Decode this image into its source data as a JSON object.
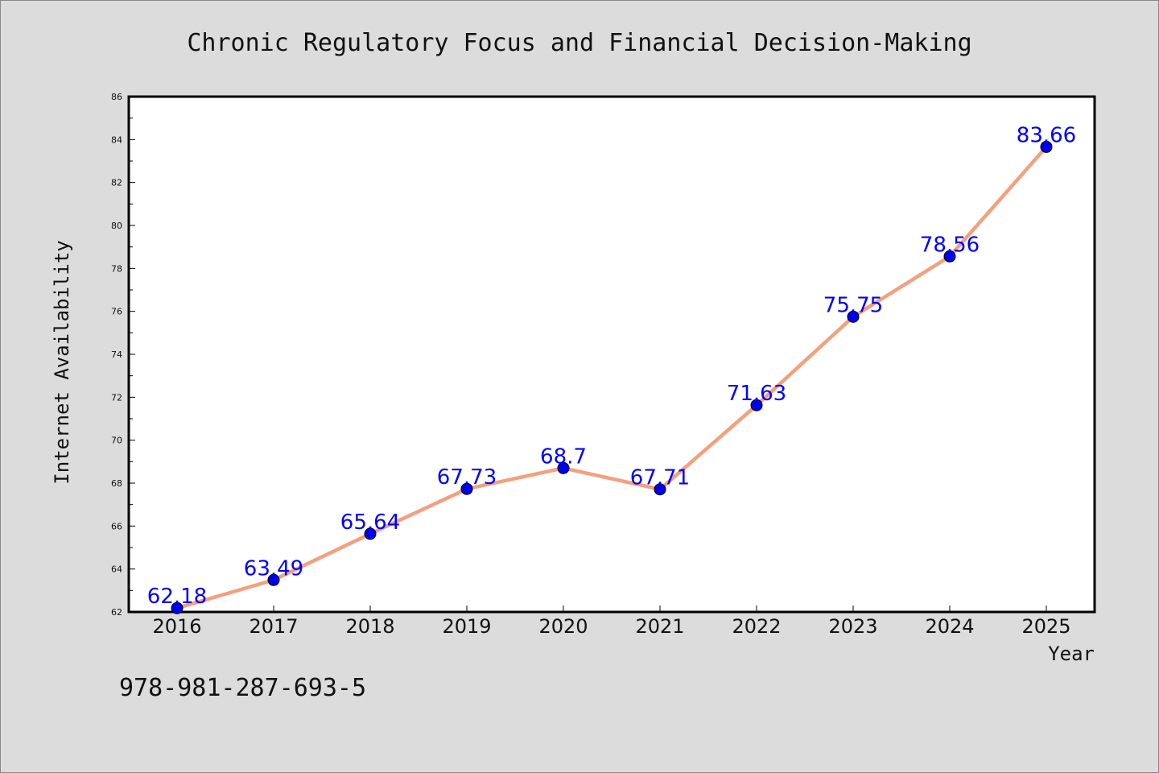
{
  "chart_data": {
    "type": "line",
    "title": "Chronic Regulatory Focus and Financial Decision-Making",
    "xlabel": "Year",
    "ylabel": "Internet Availability",
    "categories": [
      "2016",
      "2017",
      "2018",
      "2019",
      "2020",
      "2021",
      "2022",
      "2023",
      "2024",
      "2025"
    ],
    "values": [
      62.18,
      63.49,
      65.64,
      67.73,
      68.7,
      67.71,
      71.63,
      75.75,
      78.56,
      83.66
    ],
    "data_labels": [
      "62.18",
      "63.49",
      "65.64",
      "67.73",
      "68.7",
      "67.71",
      "71.63",
      "75.75",
      "78.56",
      "83.66"
    ],
    "ylim": [
      62,
      86
    ],
    "yticks": [
      62,
      64,
      66,
      68,
      70,
      72,
      74,
      76,
      78,
      80,
      82,
      84,
      86
    ],
    "grid": false,
    "legend": "none",
    "line_color": "#f4a07f",
    "marker_color": "#0000ee",
    "label_color": "#0000ff"
  },
  "footer": {
    "isbn": "978-981-287-693-5"
  }
}
